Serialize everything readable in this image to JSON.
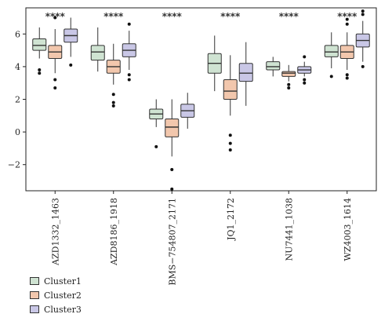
{
  "chart_data": {
    "type": "box",
    "title": "",
    "xlabel": "",
    "ylabel": "",
    "ylim": [
      -3.6,
      7.6
    ],
    "yticks": [
      -2,
      0,
      2,
      4,
      6
    ],
    "categories": [
      "AZD1332_1463",
      "AZD8186_1918",
      "BMS−754807_2171",
      "JQ1_2172",
      "NU7441_1038",
      "WZ4003_1614"
    ],
    "significance": [
      "****",
      "****",
      "****",
      "****",
      "****",
      "****"
    ],
    "legend_position": "bottom-left",
    "series": [
      {
        "name": "Cluster1",
        "color": "#cfe3d2",
        "stats": [
          {
            "whisker_low": 4.5,
            "q1": 5.0,
            "median": 5.3,
            "q3": 5.7,
            "whisker_high": 6.4,
            "outliers": [
              3.6,
              3.8
            ]
          },
          {
            "whisker_low": 3.7,
            "q1": 4.4,
            "median": 4.9,
            "q3": 5.3,
            "whisker_high": 6.4,
            "outliers": []
          },
          {
            "whisker_low": 0.3,
            "q1": 0.8,
            "median": 1.1,
            "q3": 1.4,
            "whisker_high": 2.0,
            "outliers": [
              -0.9
            ]
          },
          {
            "whisker_low": 2.5,
            "q1": 3.6,
            "median": 4.2,
            "q3": 4.8,
            "whisker_high": 5.9,
            "outliers": []
          },
          {
            "whisker_low": 3.4,
            "q1": 3.8,
            "median": 4.0,
            "q3": 4.3,
            "whisker_high": 4.6,
            "outliers": []
          },
          {
            "whisker_low": 3.9,
            "q1": 4.6,
            "median": 4.9,
            "q3": 5.3,
            "whisker_high": 6.1,
            "outliers": [
              3.4
            ]
          }
        ]
      },
      {
        "name": "Cluster2",
        "color": "#f2c7ad",
        "stats": [
          {
            "whisker_low": 3.6,
            "q1": 4.5,
            "median": 4.9,
            "q3": 5.3,
            "whisker_high": 6.3,
            "outliers": [
              2.7,
              3.2,
              7.0
            ]
          },
          {
            "whisker_low": 2.9,
            "q1": 3.6,
            "median": 4.0,
            "q3": 4.4,
            "whisker_high": 5.4,
            "outliers": [
              1.6,
              1.8,
              2.3
            ]
          },
          {
            "whisker_low": -1.5,
            "q1": -0.3,
            "median": 0.3,
            "q3": 0.8,
            "whisker_high": 2.0,
            "outliers": [
              -2.3,
              -3.5
            ]
          },
          {
            "whisker_low": 1.0,
            "q1": 2.0,
            "median": 2.5,
            "q3": 3.2,
            "whisker_high": 4.7,
            "outliers": [
              -0.2,
              -0.7,
              -1.1
            ]
          },
          {
            "whisker_low": 3.1,
            "q1": 3.4,
            "median": 3.6,
            "q3": 3.7,
            "whisker_high": 4.1,
            "outliers": [
              2.7,
              2.9
            ]
          },
          {
            "whisker_low": 3.8,
            "q1": 4.5,
            "median": 4.9,
            "q3": 5.3,
            "whisker_high": 6.1,
            "outliers": [
              3.3,
              3.5,
              6.6,
              6.9
            ]
          }
        ]
      },
      {
        "name": "Cluster3",
        "color": "#c9c7e6",
        "stats": [
          {
            "whisker_low": 4.6,
            "q1": 5.5,
            "median": 5.9,
            "q3": 6.3,
            "whisker_high": 7.0,
            "outliers": [
              4.1
            ]
          },
          {
            "whisker_low": 3.8,
            "q1": 4.6,
            "median": 5.0,
            "q3": 5.4,
            "whisker_high": 6.2,
            "outliers": [
              3.2,
              3.5,
              6.6
            ]
          },
          {
            "whisker_low": 0.2,
            "q1": 0.9,
            "median": 1.3,
            "q3": 1.7,
            "whisker_high": 2.4,
            "outliers": []
          },
          {
            "whisker_low": 1.6,
            "q1": 3.1,
            "median": 3.6,
            "q3": 4.2,
            "whisker_high": 5.5,
            "outliers": []
          },
          {
            "whisker_low": 3.4,
            "q1": 3.6,
            "median": 3.8,
            "q3": 4.0,
            "whisker_high": 4.3,
            "outliers": [
              3.0,
              3.2,
              4.6
            ]
          },
          {
            "whisker_low": 4.3,
            "q1": 5.2,
            "median": 5.6,
            "q3": 6.0,
            "whisker_high": 6.8,
            "outliers": [
              4.0,
              7.2,
              7.4
            ]
          }
        ]
      }
    ]
  }
}
